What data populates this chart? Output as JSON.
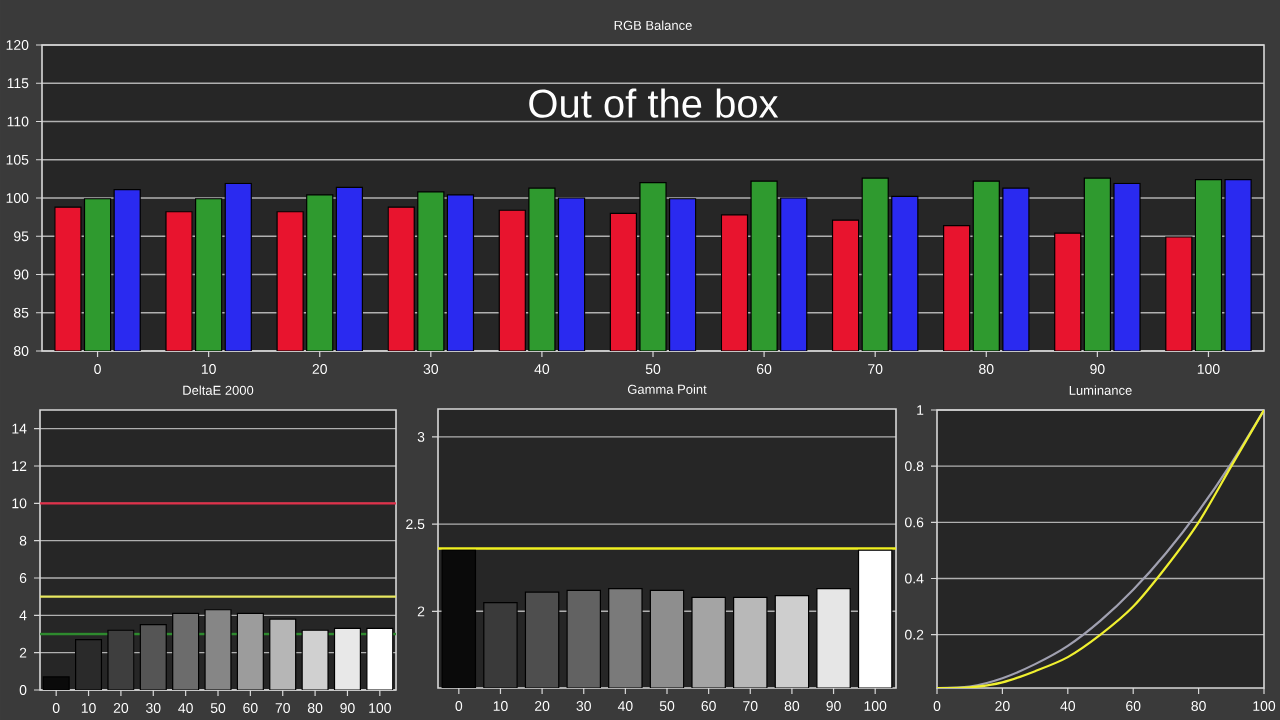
{
  "chart_data": [
    {
      "type": "bar",
      "title": "RGB Balance",
      "annotations": [
        "Out of the box"
      ],
      "categories": [
        "0",
        "10",
        "20",
        "30",
        "40",
        "50",
        "60",
        "70",
        "80",
        "90",
        "100"
      ],
      "series": [
        {
          "color": "#e8142e",
          "values": [
            98.8,
            98.2,
            98.2,
            98.8,
            98.4,
            98.0,
            97.8,
            97.1,
            96.4,
            95.4,
            94.9
          ]
        },
        {
          "color": "#2f9a2f",
          "values": [
            99.9,
            99.9,
            100.4,
            100.8,
            101.3,
            102.0,
            102.2,
            102.6,
            102.2,
            102.6,
            102.4
          ]
        },
        {
          "color": "#2a2af0",
          "values": [
            101.1,
            101.9,
            101.4,
            100.4,
            100.0,
            99.9,
            100.0,
            100.2,
            101.3,
            101.9,
            102.4
          ]
        }
      ],
      "ylim": [
        80,
        120
      ],
      "yticks": [
        80,
        85,
        90,
        95,
        100,
        105,
        110,
        115,
        120
      ],
      "grid": "y"
    },
    {
      "type": "bar",
      "title": "DeltaE 2000",
      "categories": [
        "0",
        "10",
        "20",
        "30",
        "40",
        "50",
        "60",
        "70",
        "80",
        "90",
        "100"
      ],
      "values": [
        0.7,
        2.7,
        3.2,
        3.5,
        4.1,
        4.3,
        4.1,
        3.8,
        3.2,
        3.3,
        3.3
      ],
      "colors": [
        "#0a0a0a",
        "#2a2a2a",
        "#3e3e3e",
        "#555555",
        "#6c6c6c",
        "#868686",
        "#9c9c9c",
        "#b6b6b6",
        "#d0d0d0",
        "#e8e8e8",
        "#ffffff"
      ],
      "ylim": [
        0,
        15
      ],
      "yticks": [
        0,
        2,
        4,
        6,
        8,
        10,
        12,
        14
      ],
      "grid": "y",
      "ref_lines": [
        {
          "axis": "y",
          "value": 10,
          "color": "#e0304a"
        },
        {
          "axis": "y",
          "value": 5,
          "color": "#e8e860"
        },
        {
          "axis": "y",
          "value": 3,
          "color": "#2e8a2e"
        }
      ]
    },
    {
      "type": "bar",
      "title": "Gamma Point",
      "categories": [
        "0",
        "10",
        "20",
        "30",
        "40",
        "50",
        "60",
        "70",
        "80",
        "90",
        "100"
      ],
      "values": [
        2.35,
        2.05,
        2.11,
        2.12,
        2.13,
        2.12,
        2.08,
        2.08,
        2.09,
        2.13,
        2.35
      ],
      "colors": [
        "#0a0a0a",
        "#3a3a3a",
        "#4e4e4e",
        "#626262",
        "#7a7a7a",
        "#8e8e8e",
        "#a4a4a4",
        "#b8b8b8",
        "#cecece",
        "#e6e6e6",
        "#ffffff"
      ],
      "ylim": [
        1.56,
        3.16
      ],
      "yticks": [
        2,
        2.5,
        3
      ],
      "grid": "y",
      "ref_lines": [
        {
          "axis": "y",
          "value": 2.36,
          "color": "#f0f020"
        }
      ]
    },
    {
      "type": "line",
      "title": "Luminance",
      "x": [
        0,
        10,
        20,
        30,
        40,
        50,
        60,
        70,
        80,
        90,
        100
      ],
      "series": [
        {
          "color": "#a0a0b0",
          "values": [
            0.01,
            0.015,
            0.045,
            0.095,
            0.16,
            0.25,
            0.36,
            0.49,
            0.64,
            0.81,
            1
          ]
        },
        {
          "color": "#f0f030",
          "values": [
            0.01,
            0.012,
            0.03,
            0.07,
            0.12,
            0.2,
            0.3,
            0.44,
            0.6,
            0.8,
            1
          ]
        }
      ],
      "xlim": [
        0,
        100
      ],
      "xticks": [
        0,
        20,
        40,
        60,
        80,
        100
      ],
      "ylim": [
        0.01,
        1
      ],
      "yticks": [
        0.2,
        0.4,
        0.6,
        0.8,
        1
      ],
      "grid": "y"
    }
  ]
}
